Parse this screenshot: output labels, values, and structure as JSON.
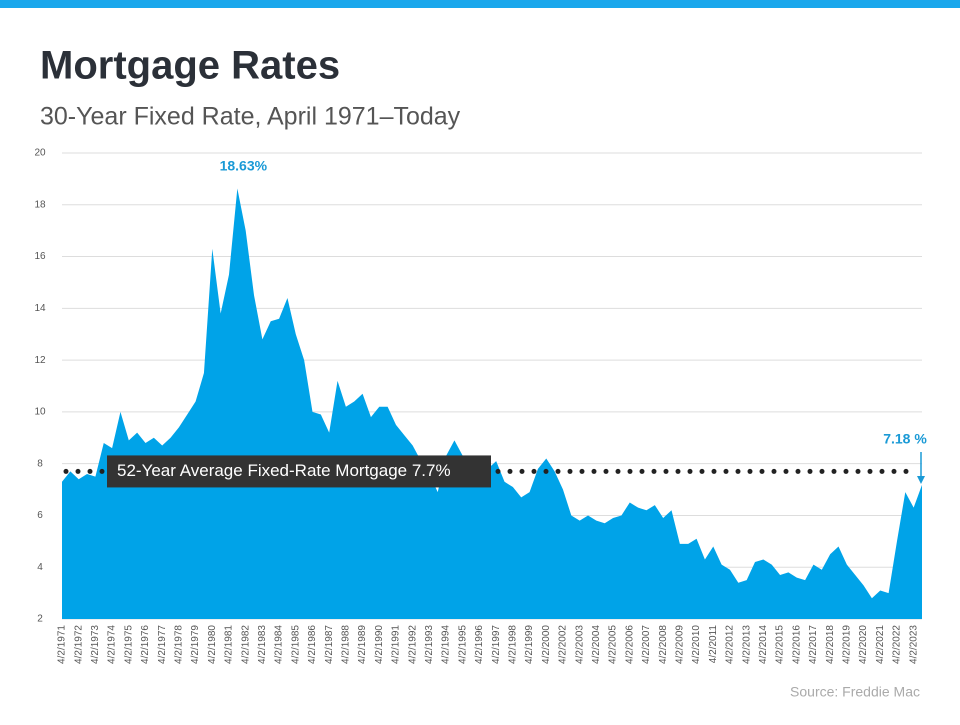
{
  "chart_data": {
    "type": "area",
    "title": "Mortgage Rates",
    "subtitle": "30-Year Fixed Rate, April 1971–Today",
    "source": "Source: Freddie Mac",
    "color": "#00a3e8",
    "categories": [
      "4/2/1971",
      null,
      "4/2/1972",
      null,
      "4/2/1973",
      null,
      "4/2/1974",
      null,
      "4/2/1975",
      null,
      "4/2/1976",
      null,
      "4/2/1977",
      null,
      "4/2/1978",
      null,
      "4/2/1979",
      null,
      "4/2/1980",
      null,
      "4/2/1981",
      null,
      "4/2/1982",
      null,
      "4/2/1983",
      null,
      "4/2/1984",
      null,
      "4/2/1985",
      null,
      "4/2/1986",
      null,
      "4/2/1987",
      null,
      "4/2/1988",
      null,
      "4/2/1989",
      null,
      "4/2/1990",
      null,
      "4/2/1991",
      null,
      "4/2/1992",
      null,
      "4/2/1993",
      null,
      "4/2/1994",
      null,
      "4/2/1995",
      null,
      "4/2/1996",
      null,
      "4/2/1997",
      null,
      "4/2/1998",
      null,
      "4/2/1999",
      null,
      "4/2/2000",
      null,
      "4/2/2002",
      null,
      "4/2/2003",
      null,
      "4/2/2004",
      null,
      "4/2/2005",
      null,
      "4/2/2006",
      null,
      "4/2/2007",
      null,
      "4/2/2008",
      null,
      "4/2/2009",
      null,
      "4/2/2010",
      null,
      "4/2/2011",
      null,
      "4/2/2012",
      null,
      "4/2/2013",
      null,
      "4/2/2014",
      null,
      "4/2/2015",
      null,
      "4/2/2016",
      null,
      "4/2/2017",
      null,
      "4/2/2018",
      null,
      "4/2/2019",
      null,
      "4/2/2020",
      null,
      "4/2/2021",
      null,
      "4/2/2022",
      null,
      "4/2/2023",
      null
    ],
    "values": [
      7.3,
      7.7,
      7.4,
      7.6,
      7.5,
      8.8,
      8.6,
      10.0,
      8.9,
      9.2,
      8.8,
      9.0,
      8.7,
      9.0,
      9.4,
      9.9,
      10.4,
      11.5,
      16.3,
      13.8,
      15.3,
      18.63,
      17.0,
      14.5,
      12.8,
      13.5,
      13.6,
      14.4,
      13.0,
      12.0,
      10.0,
      9.9,
      9.2,
      11.2,
      10.2,
      10.4,
      10.7,
      9.8,
      10.2,
      10.2,
      9.5,
      9.1,
      8.7,
      8.1,
      7.6,
      6.9,
      8.3,
      8.9,
      8.3,
      7.6,
      7.9,
      7.8,
      8.1,
      7.3,
      7.1,
      6.7,
      6.9,
      7.8,
      8.2,
      7.7,
      7.0,
      6.0,
      5.8,
      6.0,
      5.8,
      5.7,
      5.9,
      6.0,
      6.5,
      6.3,
      6.2,
      6.4,
      5.9,
      6.2,
      4.9,
      4.9,
      5.1,
      4.3,
      4.8,
      4.1,
      3.9,
      3.4,
      3.5,
      4.2,
      4.3,
      4.1,
      3.7,
      3.8,
      3.6,
      3.5,
      4.1,
      3.9,
      4.5,
      4.8,
      4.1,
      3.7,
      3.3,
      2.8,
      3.1,
      3.0,
      5.0,
      6.9,
      6.3,
      7.18
    ],
    "ylim": [
      2,
      20
    ],
    "yticks": [
      2,
      4,
      6,
      8,
      10,
      12,
      14,
      16,
      18,
      20
    ],
    "grid": true,
    "average_line": {
      "label": "52-Year Average Fixed-Rate Mortgage 7.7%",
      "value": 7.7
    },
    "annotations": [
      {
        "text": "18.63%"
      },
      {
        "text": "7.18 %"
      }
    ]
  }
}
